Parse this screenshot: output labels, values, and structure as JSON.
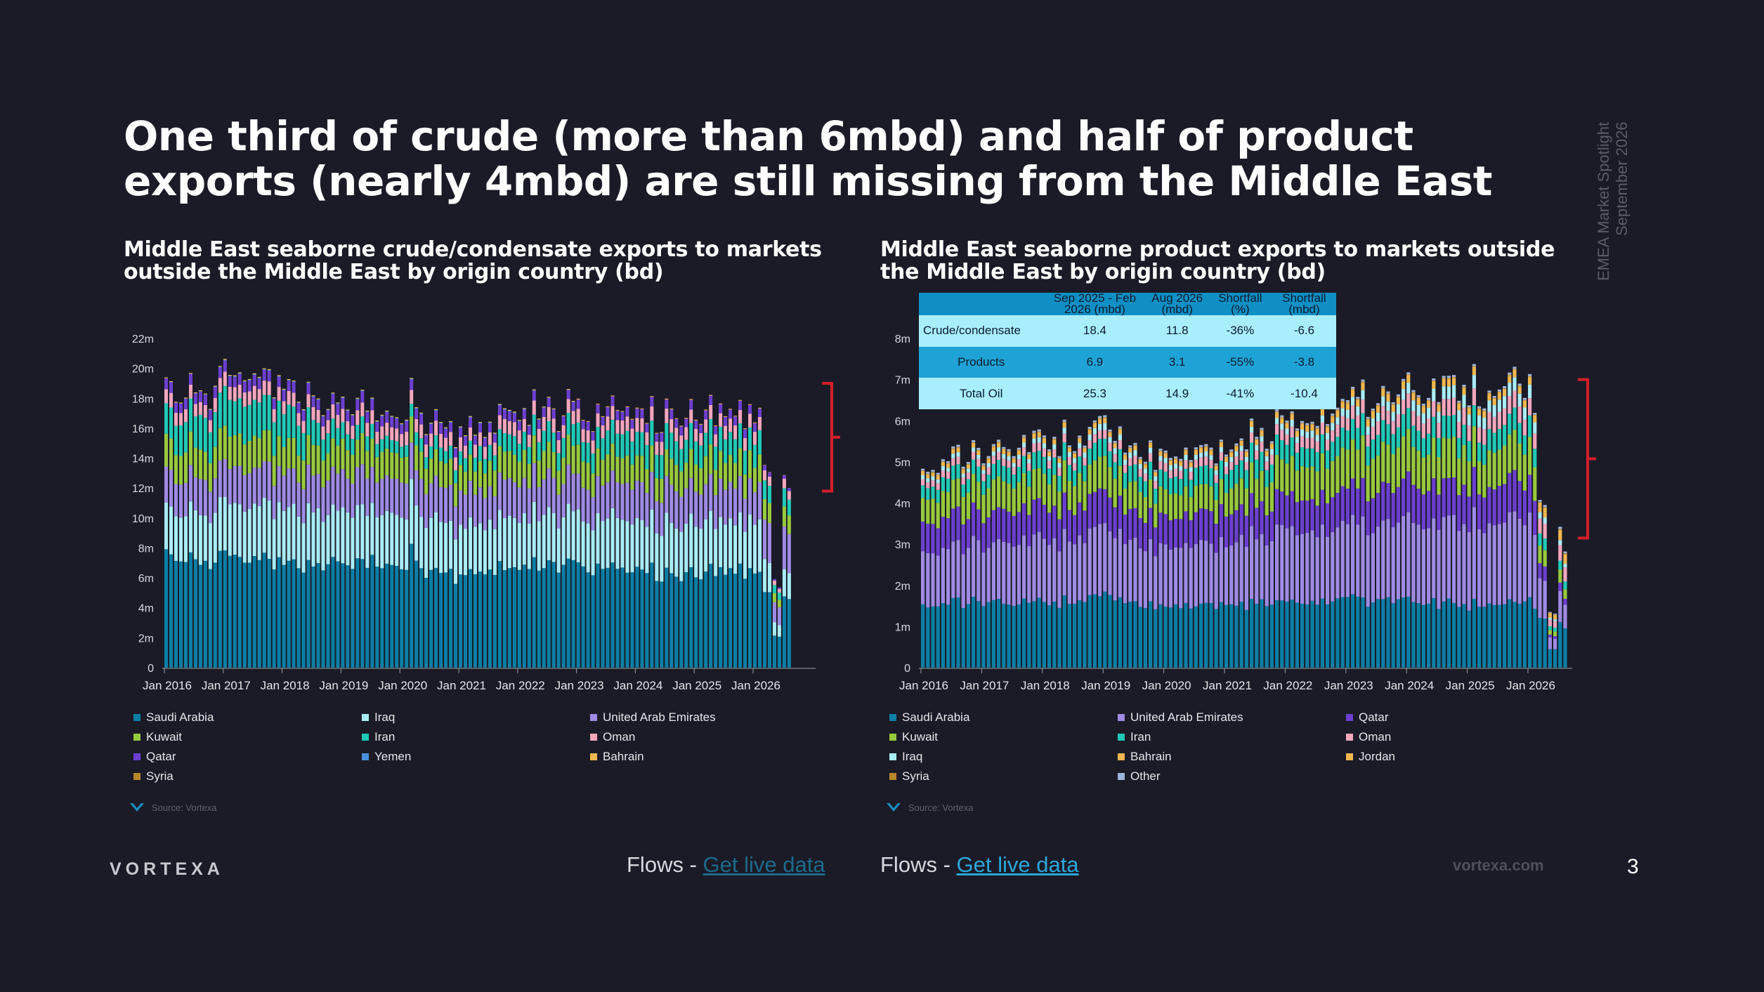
{
  "slide": {
    "title": "One third of crude (more than 6mbd) and half of product exports (nearly 4mbd) are still missing from the Middle East",
    "side_text_line1": "EMEA Market Spotlight",
    "side_text_line2": "September 2026",
    "logo": "VORTEXA",
    "footer_url": "vortexa.com",
    "page_number": "3",
    "source_label": "Source: Vortexa"
  },
  "flows": [
    {
      "prefix": "Flows - ",
      "link": "Get live data",
      "link_color": "#1d6a8c"
    },
    {
      "prefix": "Flows - ",
      "link": "Get live data",
      "link_color": "#2aa7dc"
    }
  ],
  "colors": {
    "Saudi Arabia": "#0b7fa6",
    "Iraq": "#a8ecf6",
    "United Arab Emirates": "#9f8ae4",
    "Kuwait": "#98c93c",
    "Iran": "#1fcab6",
    "Oman": "#f4a6bd",
    "Qatar": "#6c3fd0",
    "Yemen": "#4a90d9",
    "Bahrain": "#f5b84f",
    "Syria": "#b8862b",
    "Jordan": "#f5b84f",
    "Other": "#9fb3d4",
    "bracket": "#d31f2a",
    "table_header": "#0f8fc4",
    "table_row_light": "#a9eeff",
    "table_row_dark": "#1fa3d6"
  },
  "table": {
    "headers": [
      "",
      "Sep 2025 - Feb 2026 (mbd)",
      "Aug 2026 (mbd)",
      "Shortfall (%)",
      "Shortfall (mbd)"
    ],
    "rows": [
      [
        "Crude/condensate",
        "18.4",
        "11.8",
        "-36%",
        "-6.6"
      ],
      [
        "Products",
        "6.9",
        "3.1",
        "-55%",
        "-3.8"
      ],
      [
        "Total Oil",
        "25.3",
        "14.9",
        "-41%",
        "-10.4"
      ]
    ]
  },
  "chart_data": [
    {
      "type": "bar",
      "stacked": true,
      "title": "Middle East seaborne crude/condensate exports to markets outside the Middle East by origin country (bd)",
      "x_ticks": [
        "Jan 2016",
        "Jan 2017",
        "Jan 2018",
        "Jan 2019",
        "Jan 2020",
        "Jan 2021",
        "Jan 2022",
        "Jan 2023",
        "Jan 2024",
        "Jan 2025",
        "Jan 2026"
      ],
      "y_ticks": [
        "0",
        "2m",
        "4m",
        "6m",
        "8m",
        "10m",
        "12m",
        "14m",
        "16m",
        "18m",
        "20m",
        "22m"
      ],
      "ylim": [
        0,
        22000000
      ],
      "legend": [
        "Saudi Arabia",
        "Iraq",
        "United Arab Emirates",
        "Kuwait",
        "Iran",
        "Oman",
        "Qatar",
        "Yemen",
        "Bahrain",
        "Syria"
      ],
      "legend_position": "bottom",
      "annotations": [
        "Bracket marking shortfall (~18.5m to ~11.5m)"
      ],
      "series_anchors_mbd": {
        "period_key": [
          "Jan 2016",
          "Jan 2017",
          "Jan 2018",
          "Jan 2019",
          "Jan 2020",
          "Jan 2021",
          "Jan 2022",
          "Jan 2023",
          "Jan 2024",
          "Jan 2025",
          "Jan 2026",
          "Aug 2026"
        ],
        "Saudi Arabia": [
          7.2,
          7.3,
          6.9,
          7.1,
          7.0,
          6.1,
          6.6,
          7.0,
          6.3,
          6.3,
          6.6,
          4.5
        ],
        "Iraq": [
          3.1,
          3.4,
          3.6,
          3.5,
          3.6,
          3.2,
          3.3,
          3.3,
          3.3,
          3.4,
          3.4,
          1.7
        ],
        "United Arab Emirates": [
          2.3,
          2.4,
          2.4,
          2.4,
          2.4,
          2.3,
          2.4,
          2.4,
          2.4,
          2.4,
          2.4,
          2.7
        ],
        "Kuwait": [
          2.0,
          2.1,
          2.0,
          1.9,
          1.8,
          1.6,
          1.8,
          1.8,
          1.7,
          1.8,
          1.8,
          1.2
        ],
        "Iran": [
          2.0,
          2.4,
          2.3,
          1.1,
          0.8,
          0.9,
          1.2,
          1.4,
          1.6,
          1.6,
          1.6,
          1.1
        ],
        "Oman": [
          0.9,
          0.9,
          0.9,
          0.9,
          0.9,
          0.9,
          0.9,
          0.9,
          0.9,
          0.9,
          0.9,
          0.6
        ],
        "Qatar": [
          0.7,
          0.7,
          0.7,
          0.7,
          0.7,
          0.6,
          0.6,
          0.6,
          0.6,
          0.6,
          0.6,
          0.2
        ],
        "Yemen": [
          0.0,
          0.05,
          0.05,
          0.05,
          0.05,
          0.05,
          0.05,
          0.0,
          0.0,
          0.0,
          0.0,
          0.0
        ],
        "Bahrain": [
          0.05,
          0.05,
          0.05,
          0.05,
          0.05,
          0.05,
          0.05,
          0.05,
          0.05,
          0.05,
          0.05,
          0.0
        ],
        "Syria": [
          0.0,
          0.0,
          0.0,
          0.0,
          0.0,
          0.0,
          0.0,
          0.0,
          0.0,
          0.0,
          0.0,
          0.0
        ]
      }
    },
    {
      "type": "bar",
      "stacked": true,
      "title": "Middle East seaborne product exports to markets outside the Middle East by origin country (bd)",
      "x_ticks": [
        "Jan 2016",
        "Jan 2017",
        "Jan 2018",
        "Jan 2019",
        "Jan 2020",
        "Jan 2021",
        "Jan 2022",
        "Jan 2023",
        "Jan 2024",
        "Jan 2025",
        "Jan 2026"
      ],
      "y_ticks": [
        "0",
        "1m",
        "2m",
        "3m",
        "4m",
        "5m",
        "6m",
        "7m",
        "8m"
      ],
      "ylim": [
        0,
        8000000
      ],
      "legend": [
        "Saudi Arabia",
        "United Arab Emirates",
        "Qatar",
        "Kuwait",
        "Iran",
        "Oman",
        "Iraq",
        "Bahrain",
        "Jordan",
        "Syria",
        "Other"
      ],
      "legend_position": "bottom",
      "annotations": [
        "Bracket marking shortfall (~7m to ~3.1m)"
      ],
      "series_anchors_mbd": {
        "period_key": [
          "Jan 2016",
          "Jan 2017",
          "Jan 2018",
          "Jan 2019",
          "Jan 2020",
          "Jan 2021",
          "Jan 2022",
          "Jan 2023",
          "Jan 2024",
          "Jan 2025",
          "Jan 2026",
          "Aug 2026"
        ],
        "Saudi Arabia": [
          1.5,
          1.6,
          1.6,
          1.7,
          1.5,
          1.5,
          1.6,
          1.7,
          1.6,
          1.5,
          1.6,
          1.0
        ],
        "United Arab Emirates": [
          1.3,
          1.4,
          1.5,
          1.6,
          1.4,
          1.5,
          1.7,
          1.8,
          1.9,
          2.0,
          2.0,
          0.6
        ],
        "Qatar": [
          0.7,
          0.75,
          0.8,
          0.8,
          0.7,
          0.75,
          0.8,
          0.85,
          0.9,
          0.9,
          0.9,
          0.15
        ],
        "Kuwait": [
          0.6,
          0.7,
          0.7,
          0.75,
          0.6,
          0.6,
          0.8,
          0.95,
          0.95,
          0.9,
          0.9,
          0.25
        ],
        "Iran": [
          0.3,
          0.35,
          0.4,
          0.4,
          0.4,
          0.45,
          0.45,
          0.5,
          0.5,
          0.5,
          0.5,
          0.2
        ],
        "Oman": [
          0.15,
          0.18,
          0.2,
          0.2,
          0.2,
          0.2,
          0.25,
          0.3,
          0.35,
          0.4,
          0.4,
          0.35
        ],
        "Iraq": [
          0.1,
          0.1,
          0.12,
          0.15,
          0.12,
          0.12,
          0.15,
          0.2,
          0.25,
          0.3,
          0.3,
          0.1
        ],
        "Bahrain": [
          0.08,
          0.09,
          0.1,
          0.1,
          0.09,
          0.1,
          0.12,
          0.15,
          0.15,
          0.15,
          0.15,
          0.1
        ],
        "Jordan": [
          0.02,
          0.02,
          0.02,
          0.02,
          0.02,
          0.02,
          0.02,
          0.03,
          0.03,
          0.03,
          0.03,
          0.15
        ],
        "Syria": [
          0.01,
          0.01,
          0.01,
          0.01,
          0.01,
          0.01,
          0.01,
          0.01,
          0.01,
          0.01,
          0.01,
          0.02
        ],
        "Other": [
          0.05,
          0.05,
          0.05,
          0.05,
          0.05,
          0.05,
          0.05,
          0.05,
          0.05,
          0.05,
          0.05,
          0.05
        ]
      }
    }
  ]
}
